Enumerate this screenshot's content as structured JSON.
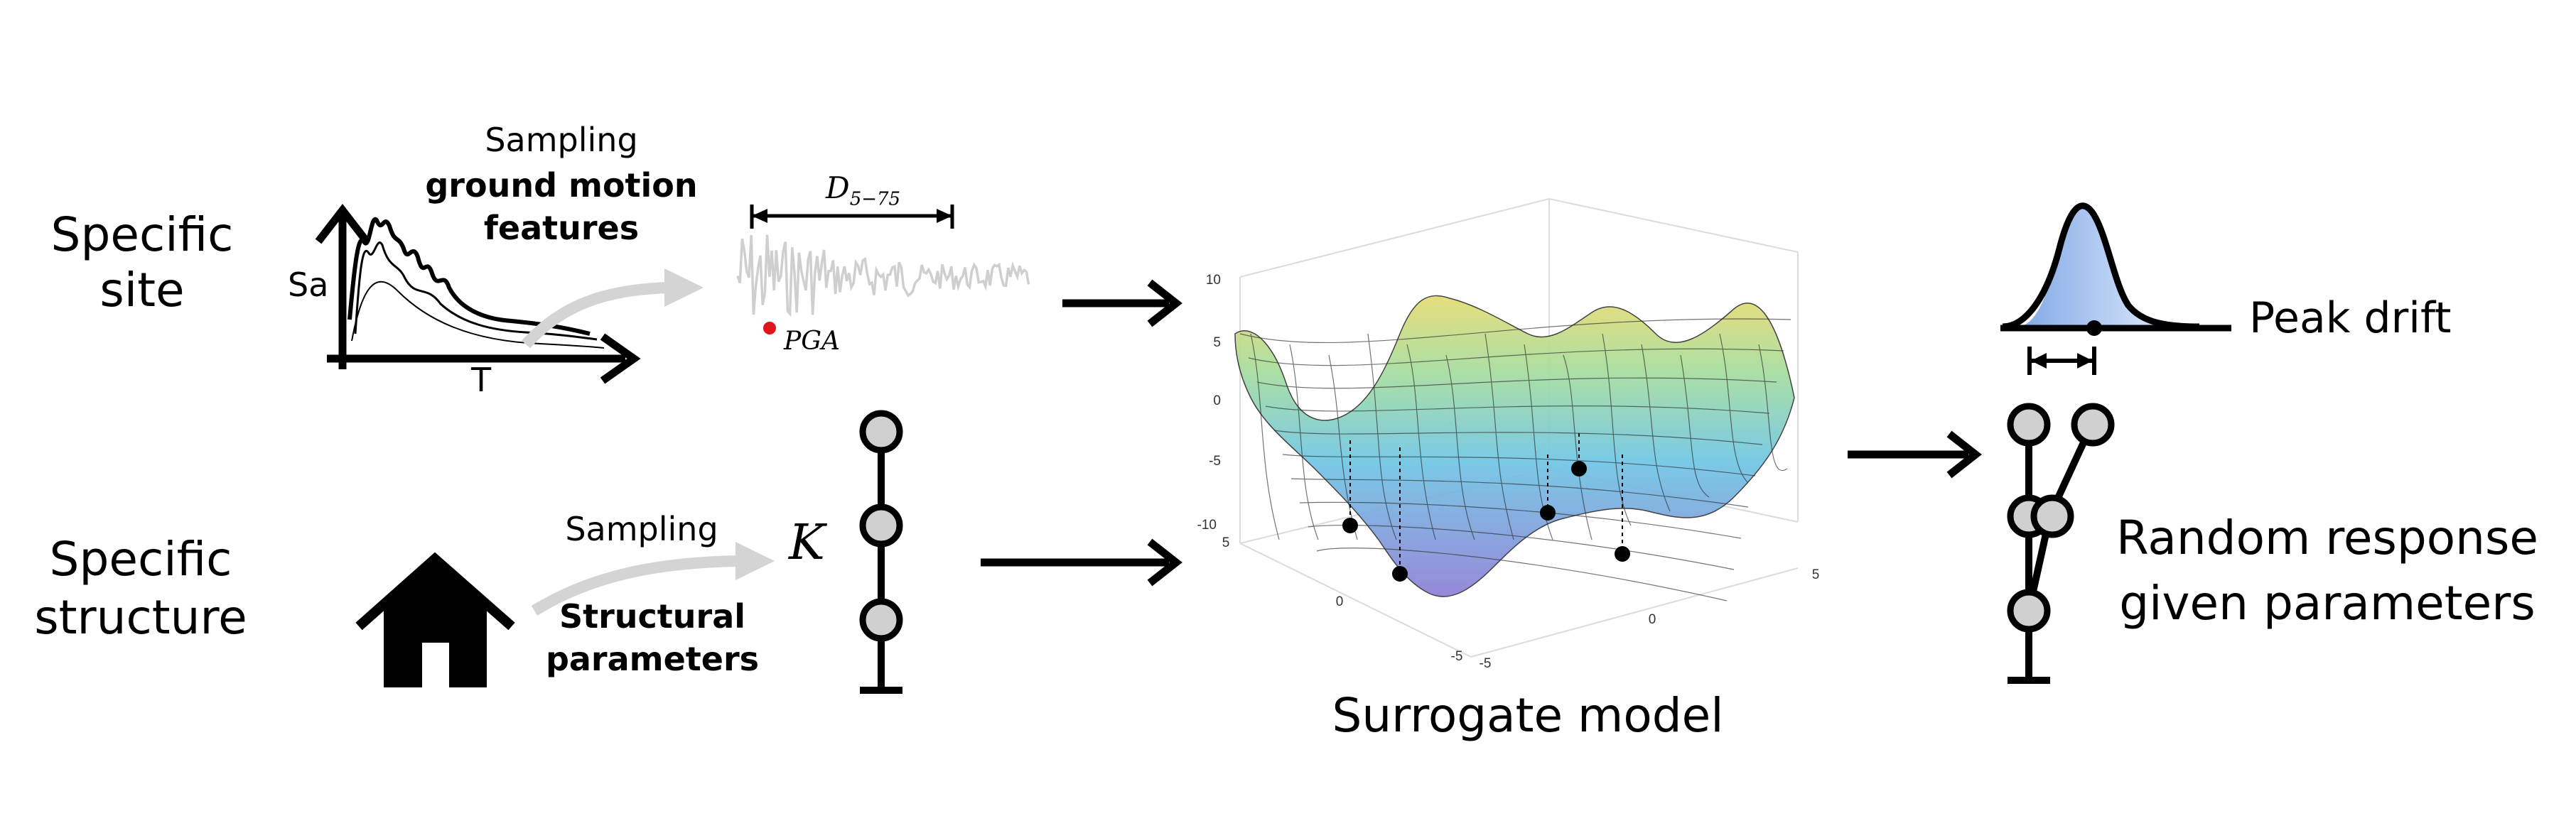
{
  "site": {
    "label_line1": "Specific",
    "label_line2": "site"
  },
  "structure": {
    "label_line1": "Specific",
    "label_line2": "structure"
  },
  "ground_motion": {
    "sampling_label": "Sampling",
    "features_line1": "ground motion",
    "features_line2": "features",
    "sa_label": "Sa",
    "t_label": "T",
    "duration_label": "D",
    "duration_sub": "5−75",
    "pga_label": "PGA"
  },
  "structural": {
    "sampling_label": "Sampling",
    "params_line1": "Structural",
    "params_line2": "parameters",
    "k_label": "K"
  },
  "surrogate": {
    "caption": "Surrogate model",
    "z_ticks": [
      "10",
      "5",
      "0",
      "-5",
      "-10"
    ],
    "x_ticks": [
      "5",
      "0",
      "-5"
    ],
    "y_ticks": [
      "-5",
      "0",
      "5"
    ]
  },
  "response": {
    "peak_label": "Peak drift",
    "random_line1": "Random response",
    "random_line2": "given parameters"
  },
  "colors": {
    "pga_dot": "#e0141b",
    "gray_arrow": "#d4d4d4",
    "node_fill": "#d0d0d0",
    "dist_fill": "#a9c6ef"
  },
  "icons": [
    "house-icon",
    "spectrum-plot-icon",
    "accelerogram-icon",
    "stick-model-icon",
    "distribution-icon"
  ]
}
